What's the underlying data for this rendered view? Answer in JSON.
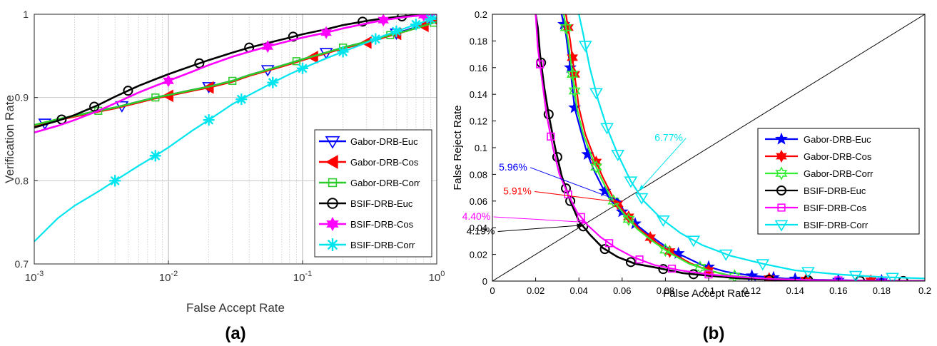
{
  "chart_data": [
    {
      "type": "line",
      "panel_label": "(a)",
      "xlabel": "False Accept Rate",
      "ylabel": "Verification Rate",
      "xscale": "log",
      "xlim": [
        0.001,
        1
      ],
      "ylim": [
        0.7,
        1.0
      ],
      "x_tick_labels": [
        {
          "base": "10",
          "exp": "-3"
        },
        {
          "base": "10",
          "exp": "-2"
        },
        {
          "base": "10",
          "exp": "-1"
        },
        {
          "base": "10",
          "exp": "0"
        }
      ],
      "y_tick_labels": [
        "0.7",
        "0.8",
        "0.9",
        "1"
      ],
      "y_ticks": [
        0.7,
        0.8,
        0.9,
        1.0
      ],
      "grid": true,
      "grid_style": "dotted",
      "legend_position": "right",
      "series": [
        {
          "name": "Gabor-DRB-Euc",
          "color": "#0000ff",
          "marker": "triangle-down",
          "x": [
            0.001,
            0.0015,
            0.002,
            0.003,
            0.004,
            0.006,
            0.008,
            0.01,
            0.015,
            0.02,
            0.03,
            0.04,
            0.06,
            0.08,
            0.1,
            0.15,
            0.2,
            0.3,
            0.4,
            0.6,
            0.8,
            1.0
          ],
          "y": [
            0.866,
            0.873,
            0.878,
            0.884,
            0.888,
            0.895,
            0.9,
            0.903,
            0.909,
            0.913,
            0.92,
            0.927,
            0.935,
            0.941,
            0.946,
            0.954,
            0.96,
            0.967,
            0.973,
            0.981,
            0.988,
            0.995
          ],
          "marker_x": [
            0.0012,
            0.0045,
            0.02,
            0.055,
            0.15,
            0.5,
            1.0
          ]
        },
        {
          "name": "Gabor-DRB-Cos",
          "color": "#ff0000",
          "marker": "triangle-left",
          "x": [
            0.001,
            0.0015,
            0.002,
            0.003,
            0.004,
            0.006,
            0.008,
            0.01,
            0.015,
            0.02,
            0.03,
            0.04,
            0.06,
            0.08,
            0.1,
            0.15,
            0.2,
            0.3,
            0.4,
            0.6,
            0.8,
            1.0
          ],
          "y": [
            0.866,
            0.873,
            0.877,
            0.883,
            0.887,
            0.894,
            0.899,
            0.902,
            0.908,
            0.912,
            0.919,
            0.926,
            0.934,
            0.94,
            0.945,
            0.953,
            0.959,
            0.966,
            0.972,
            0.98,
            0.986,
            0.992
          ],
          "marker_x": [
            0.01,
            0.02,
            0.12,
            0.3,
            0.5,
            0.8,
            1.0
          ]
        },
        {
          "name": "Gabor-DRB-Corr",
          "color": "#2bcc2b",
          "marker": "square",
          "x": [
            0.001,
            0.0015,
            0.002,
            0.003,
            0.004,
            0.006,
            0.008,
            0.01,
            0.015,
            0.02,
            0.03,
            0.04,
            0.06,
            0.08,
            0.1,
            0.15,
            0.2,
            0.3,
            0.4,
            0.6,
            0.8,
            1.0
          ],
          "y": [
            0.867,
            0.874,
            0.878,
            0.884,
            0.888,
            0.895,
            0.9,
            0.903,
            0.909,
            0.913,
            0.92,
            0.927,
            0.935,
            0.941,
            0.946,
            0.954,
            0.96,
            0.967,
            0.973,
            0.98,
            0.986,
            0.991
          ],
          "marker_x": [
            0.003,
            0.008,
            0.03,
            0.09,
            0.2,
            0.45,
            0.95
          ]
        },
        {
          "name": "BSIF-DRB-Euc",
          "color": "#000000",
          "marker": "circle",
          "x": [
            0.001,
            0.0015,
            0.002,
            0.003,
            0.004,
            0.006,
            0.008,
            0.01,
            0.015,
            0.02,
            0.03,
            0.04,
            0.06,
            0.08,
            0.1,
            0.15,
            0.2,
            0.3,
            0.4,
            0.6,
            0.8,
            1.0
          ],
          "y": [
            0.864,
            0.872,
            0.879,
            0.891,
            0.901,
            0.914,
            0.922,
            0.928,
            0.938,
            0.945,
            0.954,
            0.96,
            0.967,
            0.972,
            0.976,
            0.982,
            0.987,
            0.992,
            0.995,
            0.998,
            1.0,
            1.0
          ],
          "marker_x": [
            0.0016,
            0.0028,
            0.005,
            0.017,
            0.04,
            0.085,
            0.28,
            0.55
          ]
        },
        {
          "name": "BSIF-DRB-Cos",
          "color": "#ff00ff",
          "marker": "hexagram",
          "x": [
            0.001,
            0.0015,
            0.002,
            0.003,
            0.004,
            0.006,
            0.008,
            0.01,
            0.015,
            0.02,
            0.03,
            0.04,
            0.06,
            0.08,
            0.1,
            0.15,
            0.2,
            0.3,
            0.4,
            0.6,
            0.8,
            1.0
          ],
          "y": [
            0.858,
            0.866,
            0.873,
            0.884,
            0.893,
            0.906,
            0.914,
            0.92,
            0.931,
            0.939,
            0.949,
            0.955,
            0.963,
            0.968,
            0.972,
            0.978,
            0.983,
            0.989,
            0.993,
            0.997,
            0.999,
            1.0
          ],
          "marker_x": [
            0.01,
            0.055,
            0.15,
            0.4,
            0.8
          ]
        },
        {
          "name": "BSIF-DRB-Corr",
          "color": "#00e5ee",
          "marker": "asterisk",
          "x": [
            0.001,
            0.0015,
            0.002,
            0.003,
            0.004,
            0.006,
            0.008,
            0.01,
            0.015,
            0.02,
            0.03,
            0.04,
            0.06,
            0.08,
            0.1,
            0.15,
            0.2,
            0.3,
            0.4,
            0.6,
            0.8,
            1.0
          ],
          "y": [
            0.727,
            0.755,
            0.77,
            0.787,
            0.8,
            0.818,
            0.83,
            0.84,
            0.86,
            0.873,
            0.892,
            0.903,
            0.918,
            0.928,
            0.935,
            0.947,
            0.955,
            0.966,
            0.974,
            0.984,
            0.991,
            0.997
          ],
          "marker_x": [
            0.004,
            0.008,
            0.02,
            0.035,
            0.06,
            0.1,
            0.2,
            0.35,
            0.5,
            0.7,
            0.9
          ]
        }
      ]
    },
    {
      "type": "line",
      "panel_label": "(b)",
      "xlabel": "False Accept Rate",
      "ylabel": "False Reject Rate",
      "xlim": [
        0,
        0.2
      ],
      "ylim": [
        0,
        0.2
      ],
      "x_ticks": [
        0,
        0.02,
        0.04,
        0.06,
        0.08,
        0.1,
        0.12,
        0.14,
        0.16,
        0.18,
        0.2
      ],
      "x_tick_labels": [
        "0",
        "0.02",
        "0.04",
        "0.06",
        "0.08",
        "0.1",
        "0.12",
        "0.14",
        "0.16",
        "0.18",
        "0.2"
      ],
      "y_ticks": [
        0,
        0.02,
        0.04,
        0.06,
        0.08,
        0.1,
        0.12,
        0.14,
        0.16,
        0.18,
        0.2
      ],
      "y_tick_labels": [
        "0",
        "0.02",
        "0.04",
        "0.06",
        "0.08",
        "0.1",
        "0.12",
        "0.14",
        "0.16",
        "0.18",
        "0.2"
      ],
      "grid": false,
      "legend_position": "right",
      "reference_line": {
        "x": [
          0,
          0.2
        ],
        "y": [
          0,
          0.2
        ],
        "color": "#000000"
      },
      "series": [
        {
          "name": "Gabor-DRB-Euc",
          "color": "#0000ff",
          "marker": "pentagram",
          "x": [
            0.032,
            0.034,
            0.036,
            0.038,
            0.041,
            0.044,
            0.047,
            0.051,
            0.055,
            0.06,
            0.066,
            0.073,
            0.08,
            0.088,
            0.097,
            0.108,
            0.12,
            0.135,
            0.15,
            0.17,
            0.19,
            0.2
          ],
          "y": [
            0.2,
            0.185,
            0.16,
            0.13,
            0.112,
            0.095,
            0.083,
            0.07,
            0.06,
            0.052,
            0.043,
            0.034,
            0.026,
            0.019,
            0.012,
            0.007,
            0.004,
            0.002,
            0.001,
            0.0005,
            0.0002,
            0.0
          ],
          "marker_x": [
            0.033,
            0.036,
            0.038,
            0.044,
            0.052,
            0.06,
            0.066,
            0.086,
            0.1,
            0.12,
            0.13,
            0.14,
            0.16,
            0.18
          ]
        },
        {
          "name": "Gabor-DRB-Cos",
          "color": "#ff0000",
          "marker": "hexagram",
          "x": [
            0.034,
            0.036,
            0.038,
            0.04,
            0.043,
            0.047,
            0.051,
            0.056,
            0.062,
            0.068,
            0.075,
            0.083,
            0.092,
            0.1,
            0.11,
            0.125,
            0.14,
            0.16,
            0.18,
            0.2
          ],
          "y": [
            0.2,
            0.18,
            0.155,
            0.13,
            0.11,
            0.093,
            0.078,
            0.062,
            0.05,
            0.039,
            0.03,
            0.021,
            0.013,
            0.008,
            0.004,
            0.002,
            0.001,
            0.0005,
            0.0002,
            0.0
          ],
          "marker_x": [
            0.035,
            0.037,
            0.038,
            0.048,
            0.058,
            0.063,
            0.073,
            0.082,
            0.1,
            0.128,
            0.145,
            0.175
          ]
        },
        {
          "name": "Gabor-DRB-Corr",
          "color": "#33ee33",
          "marker": "hexagram-open",
          "x": [
            0.033,
            0.035,
            0.037,
            0.039,
            0.042,
            0.046,
            0.05,
            0.055,
            0.061,
            0.067,
            0.074,
            0.082,
            0.091,
            0.1,
            0.11,
            0.125,
            0.14,
            0.16,
            0.18,
            0.2
          ],
          "y": [
            0.2,
            0.18,
            0.155,
            0.13,
            0.11,
            0.093,
            0.078,
            0.062,
            0.05,
            0.039,
            0.03,
            0.021,
            0.013,
            0.008,
            0.004,
            0.002,
            0.001,
            0.0005,
            0.0002,
            0.0
          ],
          "marker_x": [
            0.034,
            0.037,
            0.038,
            0.048,
            0.056,
            0.063,
            0.08,
            0.096,
            0.112
          ]
        },
        {
          "name": "BSIF-DRB-Euc",
          "color": "#000000",
          "marker": "circle",
          "x": [
            0.02,
            0.021,
            0.022,
            0.024,
            0.026,
            0.029,
            0.032,
            0.036,
            0.04,
            0.045,
            0.051,
            0.058,
            0.066,
            0.076,
            0.088,
            0.1,
            0.115,
            0.13,
            0.15,
            0.17,
            0.19,
            0.2
          ],
          "y": [
            0.2,
            0.19,
            0.17,
            0.145,
            0.125,
            0.1,
            0.079,
            0.06,
            0.045,
            0.035,
            0.025,
            0.018,
            0.013,
            0.01,
            0.006,
            0.004,
            0.002,
            0.001,
            0.0005,
            0.0002,
            0.0001,
            0.0
          ],
          "marker_x": [
            0.0225,
            0.026,
            0.03,
            0.034,
            0.036,
            0.042,
            0.052,
            0.064,
            0.079,
            0.093,
            0.128,
            0.146,
            0.17,
            0.19
          ]
        },
        {
          "name": "BSIF-DRB-Cos",
          "color": "#ff00ff",
          "marker": "square",
          "x": [
            0.02,
            0.021,
            0.023,
            0.025,
            0.028,
            0.031,
            0.035,
            0.039,
            0.044,
            0.05,
            0.057,
            0.065,
            0.075,
            0.087,
            0.1,
            0.115,
            0.13,
            0.15,
            0.17,
            0.19,
            0.2
          ],
          "y": [
            0.2,
            0.175,
            0.15,
            0.125,
            0.1,
            0.08,
            0.065,
            0.052,
            0.042,
            0.033,
            0.025,
            0.018,
            0.012,
            0.008,
            0.005,
            0.003,
            0.0015,
            0.0007,
            0.0003,
            0.0001,
            0.0
          ],
          "marker_x": [
            0.022,
            0.027,
            0.035,
            0.041,
            0.054,
            0.068,
            0.083,
            0.1,
            0.16,
            0.18
          ]
        },
        {
          "name": "BSIF-DRB-Corr",
          "color": "#00e5ee",
          "marker": "triangle-down",
          "x": [
            0.04,
            0.042,
            0.045,
            0.049,
            0.053,
            0.058,
            0.064,
            0.07,
            0.078,
            0.087,
            0.097,
            0.11,
            0.125,
            0.14,
            0.16,
            0.18,
            0.2
          ],
          "y": [
            0.2,
            0.185,
            0.16,
            0.135,
            0.115,
            0.095,
            0.075,
            0.06,
            0.047,
            0.036,
            0.027,
            0.019,
            0.013,
            0.008,
            0.005,
            0.003,
            0.002
          ],
          "marker_x": [
            0.043,
            0.048,
            0.053,
            0.058,
            0.064,
            0.069,
            0.079,
            0.093,
            0.108,
            0.125,
            0.146,
            0.168,
            0.185
          ]
        }
      ],
      "annotations": [
        {
          "text": "5.96%",
          "color": "#0000ff",
          "point": [
            0.0596,
            0.0596
          ],
          "text_at": [
            0.003,
            0.083
          ]
        },
        {
          "text": "5.91%",
          "color": "#ff0000",
          "point": [
            0.0591,
            0.0591
          ],
          "text_at": [
            0.005,
            0.065
          ]
        },
        {
          "text": "4.40%",
          "color": "#ff00ff",
          "point": [
            0.044,
            0.044
          ],
          "text_at": [
            -0.014,
            0.046
          ]
        },
        {
          "text": "4.19%",
          "color": "#000000",
          "point": [
            0.0419,
            0.0419
          ],
          "text_at": [
            -0.012,
            0.035
          ]
        },
        {
          "text": "6.77%",
          "color": "#00e5ee",
          "point": [
            0.0677,
            0.0677
          ],
          "text_at": [
            0.075,
            0.105
          ]
        }
      ]
    }
  ]
}
